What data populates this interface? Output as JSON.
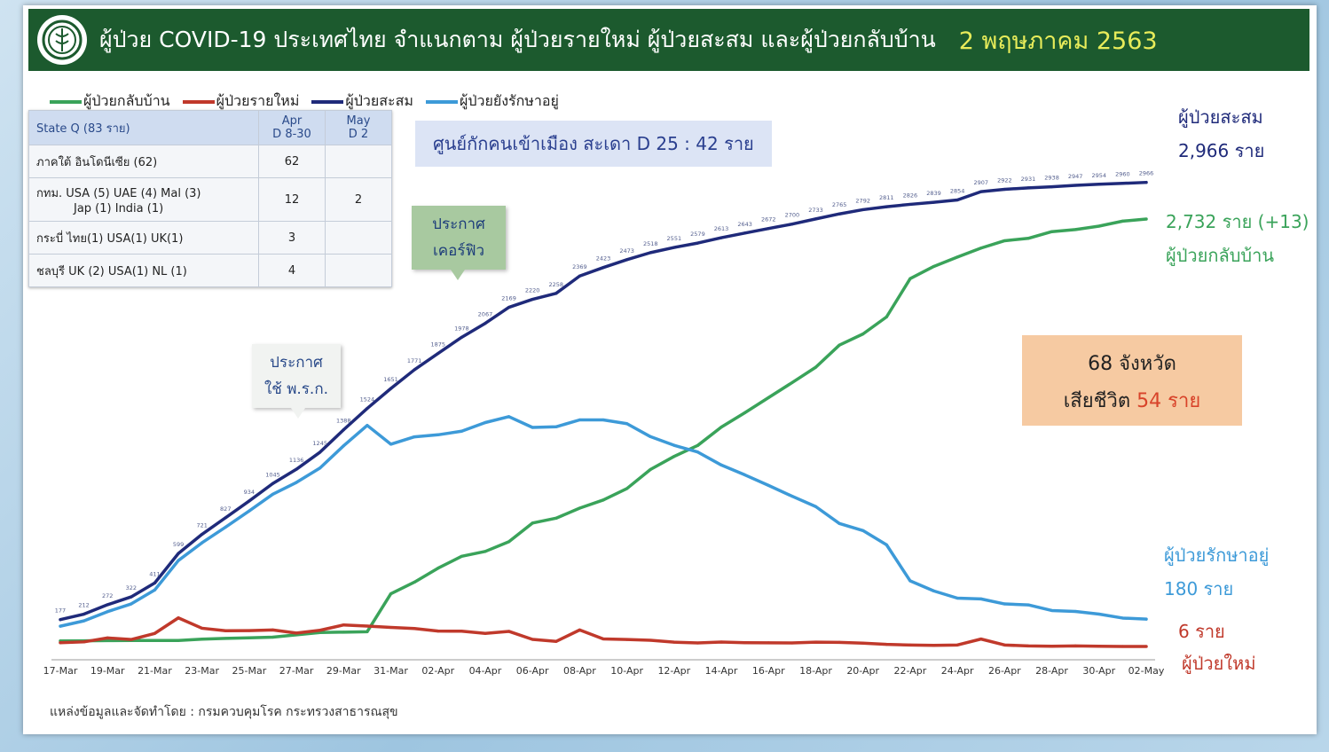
{
  "header": {
    "title": "ผู้ป่วย COVID-19 ประเทศไทย จำแนกตาม ผู้ป่วยรายใหม่ ผู้ป่วยสะสม  และผู้ป่วยกลับบ้าน",
    "date": "2 พฤษภาคม 2563"
  },
  "legend": [
    {
      "label": "ผู้ป่วยกลับบ้าน",
      "color": "#3aa35a"
    },
    {
      "label": "ผู้ป่วยรายใหม่",
      "color": "#c0392b"
    },
    {
      "label": "ผู้ป่วยสะสม",
      "color": "#1f2a7a"
    },
    {
      "label": "ผู้ป่วยยังรักษาอยู่",
      "color": "#3d9ad8"
    }
  ],
  "state_q": {
    "header": {
      "title": "State Q   (83 ราย)",
      "col1": [
        "Apr",
        "D 8-30"
      ],
      "col2": [
        "May",
        "D 2"
      ]
    },
    "rows": [
      {
        "label": "ภาคใต้ อินโดนีเซีย (62)",
        "apr": "62",
        "may": ""
      },
      {
        "label": "กทม. USA (5)  UAE (4) Mal (3)",
        "label2": "Jap (1) India (1)",
        "apr": "12",
        "may": "2"
      },
      {
        "label": "กระบี่  ไทย(1) USA(1) UK(1)",
        "apr": "3",
        "may": ""
      },
      {
        "label": "ชลบุรี UK (2) USA(1) NL (1)",
        "apr": "4",
        "may": ""
      }
    ]
  },
  "callouts": {
    "sadao": "ศูนย์กักคนเข้าเมือง  สะเดา  D 25 : 42  ราย",
    "curfew": [
      "ประกาศ",
      "เคอร์ฟิว"
    ],
    "emergency": [
      "ประกาศ",
      "ใช้ พ.ร.ก."
    ]
  },
  "summary": {
    "provinces": "68 จังหวัด",
    "deaths_label": "เสียชีวิต",
    "deaths_value": "54  ราย"
  },
  "side_labels": {
    "cumulative_title": "ผู้ป่วยสะสม",
    "cumulative_value": "2,966 ราย",
    "recovered_value": "2,732 ราย  (+13)",
    "recovered_title": "ผู้ป่วยกลับบ้าน",
    "treating_title": "ผู้ป่วยรักษาอยู่",
    "treating_value": "180 ราย",
    "new_value": "6 ราย",
    "new_title": "ผู้ป่วยใหม่",
    "colors": {
      "cumulative": "#1f2a7a",
      "recovered": "#3aa35a",
      "treating": "#3d9ad8",
      "new": "#c0392b"
    }
  },
  "source": "แหล่งข้อมูลและจัดทำโดย : กรมควบคุมโรค กระทรวงสาธารณสุข",
  "chart_data": {
    "type": "line",
    "title": "",
    "xlabel": "",
    "ylabel": "",
    "ylim": [
      0,
      3100
    ],
    "x": [
      "17-Mar",
      "18-Mar",
      "19-Mar",
      "20-Mar",
      "21-Mar",
      "22-Mar",
      "23-Mar",
      "24-Mar",
      "25-Mar",
      "26-Mar",
      "27-Mar",
      "28-Mar",
      "29-Mar",
      "30-Mar",
      "31-Mar",
      "01-Apr",
      "02-Apr",
      "03-Apr",
      "04-Apr",
      "05-Apr",
      "06-Apr",
      "07-Apr",
      "08-Apr",
      "09-Apr",
      "10-Apr",
      "11-Apr",
      "12-Apr",
      "13-Apr",
      "14-Apr",
      "15-Apr",
      "16-Apr",
      "17-Apr",
      "18-Apr",
      "19-Apr",
      "20-Apr",
      "21-Apr",
      "22-Apr",
      "23-Apr",
      "24-Apr",
      "25-Apr",
      "26-Apr",
      "27-Apr",
      "28-Apr",
      "29-Apr",
      "30-Apr",
      "01-May",
      "02-May"
    ],
    "x_tick_labels": [
      "17-Mar",
      "19-Mar",
      "21-Mar",
      "23-Mar",
      "25-Mar",
      "27-Mar",
      "29-Mar",
      "31-Mar",
      "02-Apr",
      "04-Apr",
      "06-Apr",
      "08-Apr",
      "10-Apr",
      "12-Apr",
      "14-Apr",
      "16-Apr",
      "18-Apr",
      "20-Apr",
      "22-Apr",
      "24-Apr",
      "26-Apr",
      "28-Apr",
      "30-Apr",
      "02-May"
    ],
    "grid": false,
    "legend": "top-left",
    "series": [
      {
        "name": "ผู้ป่วยสะสม",
        "color": "#1f2a7a",
        "values": [
          177,
          212,
          272,
          322,
          411,
          599,
          721,
          827,
          934,
          1045,
          1136,
          1245,
          1388,
          1524,
          1651,
          1771,
          1875,
          1978,
          2067,
          2169,
          2220,
          2258,
          2369,
          2423,
          2473,
          2518,
          2551,
          2579,
          2613,
          2643,
          2672,
          2700,
          2733,
          2765,
          2792,
          2811,
          2826,
          2839,
          2854,
          2907,
          2922,
          2931,
          2938,
          2947,
          2954,
          2960,
          2966
        ]
      },
      {
        "name": "ผู้ป่วยกลับบ้าน",
        "color": "#3aa35a",
        "values": [
          41,
          42,
          43,
          44,
          44,
          44,
          52,
          57,
          61,
          65,
          80,
          95,
          97,
          100,
          342,
          416,
          505,
          581,
          612,
          674,
          793,
          824,
          888,
          940,
          1013,
          1135,
          1218,
          1288,
          1405,
          1497,
          1593,
          1689,
          1787,
          1928,
          1999,
          2108,
          2352,
          2430,
          2490,
          2547,
          2594,
          2609,
          2652,
          2665,
          2687,
          2719,
          2732
        ]
      },
      {
        "name": "ผู้ป่วยยังรักษาอยู่",
        "color": "#3d9ad8",
        "values": [
          135,
          169,
          228,
          277,
          366,
          554,
          667,
          767,
          870,
          977,
          1052,
          1144,
          1286,
          1416,
          1296,
          1343,
          1356,
          1379,
          1434,
          1472,
          1403,
          1407,
          1451,
          1451,
          1427,
          1344,
          1289,
          1246,
          1163,
          1100,
          1033,
          964,
          898,
          790,
          745,
          654,
          424,
          360,
          314,
          309,
          277,
          271,
          235,
          229,
          212,
          187,
          180
        ]
      },
      {
        "name": "ผู้ป่วยรายใหม่",
        "color": "#c0392b",
        "values": [
          30,
          35,
          60,
          50,
          89,
          188,
          122,
          106,
          107,
          111,
          91,
          109,
          143,
          136,
          127,
          120,
          104,
          103,
          89,
          102,
          51,
          38,
          111,
          54,
          50,
          45,
          33,
          28,
          34,
          30,
          29,
          28,
          33,
          32,
          27,
          19,
          15,
          13,
          15,
          53,
          15,
          9,
          7,
          9,
          7,
          6,
          6
        ]
      }
    ],
    "data_labels": {
      "cumulative": [
        "177",
        "212",
        "272",
        "322",
        "411",
        "599",
        "721",
        "827",
        "934",
        "1045",
        "1136",
        "1245",
        "1388",
        "1524",
        "1651",
        "1771",
        "1875",
        "1978",
        "2067",
        "2169",
        "2220",
        "2258",
        "2369",
        "2423",
        "2473",
        "2518",
        "2551",
        "2579",
        "2613",
        "2643",
        "2672",
        "2700",
        "2733",
        "2765",
        "2792",
        "2811",
        "2826",
        "2839",
        "2854",
        "2907",
        "2922",
        "2931",
        "2938",
        "2947",
        "2954",
        "2960",
        "2966"
      ]
    }
  }
}
